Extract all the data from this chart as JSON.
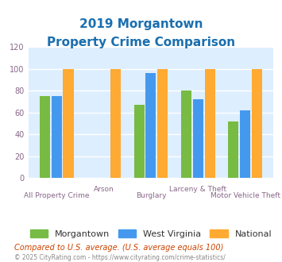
{
  "title_line1": "2019 Morgantown",
  "title_line2": "Property Crime Comparison",
  "title_color": "#1a6faf",
  "categories": [
    "All Property Crime",
    "Arson",
    "Burglary",
    "Larceny & Theft",
    "Motor Vehicle Theft"
  ],
  "cat_labels_row1": [
    "All Property Crime",
    "Arson",
    "Burglary",
    "Larceny & Theft",
    "Motor Vehicle Theft"
  ],
  "morgantown": [
    75,
    0,
    67,
    80,
    52
  ],
  "west_virginia": [
    75,
    0,
    96,
    72,
    62
  ],
  "national": [
    100,
    100,
    100,
    100,
    100
  ],
  "colors": {
    "morgantown": "#77bb44",
    "west_virginia": "#4499ee",
    "national": "#ffaa33"
  },
  "ylim": [
    0,
    120
  ],
  "yticks": [
    0,
    20,
    40,
    60,
    80,
    100,
    120
  ],
  "legend_labels": [
    "Morgantown",
    "West Virginia",
    "National"
  ],
  "footnote1": "Compared to U.S. average. (U.S. average equals 100)",
  "footnote2": "© 2025 CityRating.com - https://www.cityrating.com/crime-statistics/",
  "footnote1_color": "#cc4400",
  "footnote2_color": "#888888",
  "bg_color": "#ddeeff",
  "xlabel_color": "#886688",
  "tick_color": "#886688"
}
